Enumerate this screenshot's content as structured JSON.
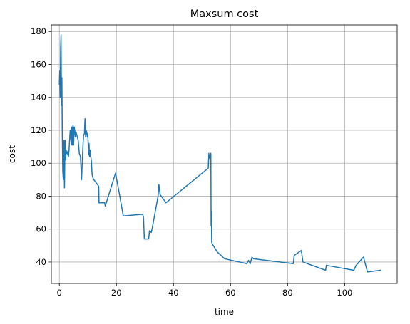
{
  "chart_data": {
    "type": "line",
    "title": "Maxsum cost",
    "xlabel": "time",
    "ylabel": "cost",
    "xlim": [
      -2.8,
      118.4
    ],
    "ylim": [
      27,
      184
    ],
    "xticks": [
      0,
      20,
      40,
      60,
      80,
      100
    ],
    "yticks": [
      40,
      60,
      80,
      100,
      120,
      140,
      160,
      180
    ],
    "grid": true,
    "series": [
      {
        "name": "cost",
        "color": "#1f77b4",
        "x": [
          0,
          0.15,
          0.3,
          0.45,
          0.6,
          0.75,
          0.9,
          1.05,
          1.2,
          1.4,
          1.6,
          1.8,
          2.0,
          2.2,
          2.4,
          2.6,
          2.8,
          3.0,
          3.2,
          3.4,
          3.8,
          4.2,
          4.4,
          4.6,
          4.8,
          5.0,
          5.2,
          5.4,
          5.6,
          5.8,
          6.0,
          6.3,
          6.6,
          7.0,
          7.4,
          7.8,
          8.2,
          8.5,
          8.8,
          9.0,
          9.2,
          9.4,
          9.6,
          9.8,
          10.0,
          10.2,
          10.4,
          10.6,
          10.8,
          11.0,
          11.2,
          11.5,
          11.8,
          12.1,
          13.8,
          13.9,
          15.9,
          16.1,
          19.7,
          21.2,
          22.4,
          29.2,
          29.5,
          29.8,
          30.2,
          31.3,
          31.6,
          32.2,
          32.5,
          34.6,
          34.9,
          35.3,
          37.4,
          52.2,
          52.4,
          52.6,
          52.9,
          53.1,
          53.2,
          53.3,
          53.4,
          53.6,
          55.4,
          57.9,
          65.7,
          66.3,
          66.9,
          67.5,
          68.0,
          82.0,
          82.3,
          84.8,
          85.4,
          93.3,
          93.6,
          103.2,
          104.0,
          106.6,
          108.0,
          112.6
        ],
        "values": [
          148,
          156,
          140,
          170,
          178,
          135,
          152,
          115,
          95,
          90,
          114,
          85,
          114,
          102,
          108,
          106,
          107,
          105,
          104,
          108,
          120,
          111,
          122,
          111,
          123,
          111,
          122,
          120,
          116,
          119,
          118,
          116,
          114,
          106,
          104,
          90,
          108,
          117,
          118,
          127,
          116,
          120,
          119,
          116,
          118,
          105,
          112,
          104,
          108,
          104,
          102,
          93,
          91,
          90,
          86,
          76,
          76,
          74,
          94,
          80,
          68,
          69,
          67,
          54,
          54,
          54,
          59,
          58,
          60,
          80,
          87,
          81,
          76,
          97,
          106,
          103,
          104,
          106,
          62,
          71,
          52,
          51,
          46,
          42,
          39,
          41,
          39,
          43,
          42,
          39,
          44,
          47,
          40,
          35,
          38,
          35,
          38,
          43,
          34,
          35
        ]
      }
    ]
  }
}
